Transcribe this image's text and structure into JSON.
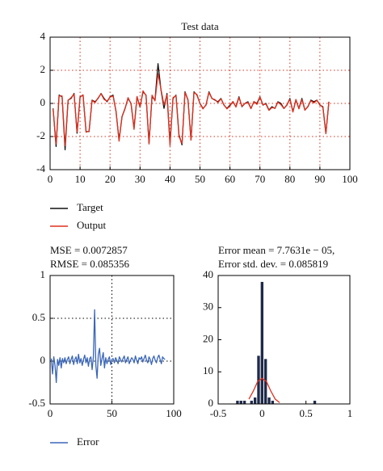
{
  "chart_data": [
    {
      "type": "line",
      "title": "Test data",
      "x": [
        1,
        2,
        3,
        4,
        5,
        6,
        7,
        8,
        9,
        10,
        11,
        12,
        13,
        14,
        15,
        16,
        17,
        18,
        19,
        20,
        21,
        22,
        23,
        24,
        25,
        26,
        27,
        28,
        29,
        30,
        31,
        32,
        33,
        34,
        35,
        36,
        37,
        38,
        39,
        40,
        41,
        42,
        43,
        44,
        45,
        46,
        47,
        48,
        49,
        50,
        51,
        52,
        53,
        54,
        55,
        56,
        57,
        58,
        59,
        60,
        61,
        62,
        63,
        64,
        65,
        66,
        67,
        68,
        69,
        70,
        71,
        72,
        73,
        74,
        75,
        76,
        77,
        78,
        79,
        80,
        81,
        82,
        83,
        84,
        85,
        86,
        87,
        88,
        89,
        90,
        91,
        92,
        93
      ],
      "series": [
        {
          "name": "Target",
          "color": "#111111",
          "values": [
            -0.3,
            -2.6,
            0.5,
            0.4,
            -2.8,
            0.2,
            0.3,
            0.6,
            -1.8,
            0.4,
            0.5,
            -1.7,
            -1.7,
            0.2,
            0.1,
            0.3,
            0.6,
            0.3,
            0.1,
            0.4,
            0.5,
            -0.5,
            -2.2,
            -0.8,
            -0.3,
            0.3,
            0,
            -1.5,
            0.4,
            -0.2,
            0.7,
            0.5,
            -2.4,
            0.4,
            0.2,
            2.4,
            0.8,
            -0.3,
            0.6,
            -2.4,
            0.3,
            0.5,
            -1.9,
            -2.5,
            0.7,
            0.2,
            -2.2,
            0.7,
            0.5,
            0,
            -0.3,
            -0.1,
            0.7,
            0.3,
            0.2,
            0.1,
            0.3,
            -0.1,
            -0.3,
            -0.1,
            0.1,
            -0.2,
            0.4,
            -0.2,
            0,
            0.1,
            -0.3,
            0.1,
            0,
            0.4,
            -0.1,
            0,
            -0.4,
            -0.2,
            -0.3,
            0.1,
            0,
            -0.3,
            -0.1,
            0.3,
            -0.5,
            0.2,
            -0.3,
            0.3,
            -0.4,
            -0.2,
            0.2,
            0.1,
            0.2,
            -0.1,
            -0.2,
            -1.8,
            0.1
          ]
        },
        {
          "name": "Output",
          "color": "#e0301e",
          "values": [
            -0.33,
            -2.45,
            0.45,
            0.45,
            -2.55,
            0.18,
            0.35,
            0.56,
            -1.72,
            0.37,
            0.52,
            -1.74,
            -1.67,
            0.18,
            0.05,
            0.33,
            0.58,
            0.24,
            0.14,
            0.38,
            0.45,
            -0.47,
            -2.28,
            -0.78,
            -0.33,
            0.35,
            -0.02,
            -1.57,
            0.42,
            -0.24,
            0.76,
            0.47,
            -2.45,
            0.5,
            0.15,
            1.8,
            0.85,
            -0.1,
            0.52,
            -2.55,
            0.35,
            0.47,
            -2,
            -2.42,
            0.66,
            0.23,
            -2.22,
            0.65,
            0.54,
            -0.02,
            -0.33,
            -0.08,
            0.66,
            0.29,
            0.23,
            0.05,
            0.28,
            -0.09,
            -0.33,
            -0.16,
            0.12,
            -0.22,
            0.35,
            -0.17,
            -0.01,
            0.06,
            -0.32,
            0.12,
            -0.06,
            0.39,
            -0.07,
            -0.04,
            -0.42,
            -0.25,
            -0.29,
            0.07,
            -0.07,
            -0.31,
            -0.08,
            0.25,
            -0.52,
            0.24,
            -0.33,
            0.24,
            -0.41,
            -0.18,
            0.16,
            0.03,
            0.18,
            -0.07,
            -0.25,
            -1.83,
            0.08
          ]
        }
      ],
      "xlim": [
        0,
        100
      ],
      "xticks": [
        0,
        10,
        20,
        30,
        40,
        50,
        60,
        70,
        80,
        90,
        100
      ],
      "ylim": [
        -4,
        4
      ],
      "yticks": [
        -4,
        -2,
        0,
        2,
        4
      ],
      "grid": true,
      "grid_color": "#d9301e"
    },
    {
      "type": "line",
      "annotations": [
        "MSE = 0.0072857",
        "RMSE = 0.085356"
      ],
      "x": [
        1,
        2,
        3,
        4,
        5,
        6,
        7,
        8,
        9,
        10,
        11,
        12,
        13,
        14,
        15,
        16,
        17,
        18,
        19,
        20,
        21,
        22,
        23,
        24,
        25,
        26,
        27,
        28,
        29,
        30,
        31,
        32,
        33,
        34,
        35,
        36,
        37,
        38,
        39,
        40,
        41,
        42,
        43,
        44,
        45,
        46,
        47,
        48,
        49,
        50,
        51,
        52,
        53,
        54,
        55,
        56,
        57,
        58,
        59,
        60,
        61,
        62,
        63,
        64,
        65,
        66,
        67,
        68,
        69,
        70,
        71,
        72,
        73,
        74,
        75,
        76,
        77,
        78,
        79,
        80,
        81,
        82,
        83,
        84,
        85,
        86,
        87,
        88,
        89,
        90,
        91,
        92,
        93
      ],
      "series": [
        {
          "name": "Error",
          "color": "#3a66b8",
          "values": [
            0.03,
            -0.15,
            0.05,
            -0.05,
            -0.25,
            0.02,
            -0.05,
            0.04,
            -0.08,
            0.03,
            -0.02,
            0.04,
            -0.03,
            0.02,
            0.05,
            -0.03,
            0.02,
            0.06,
            -0.04,
            0.02,
            0.05,
            -0.03,
            0.08,
            -0.02,
            0.03,
            -0.05,
            0.02,
            0.07,
            -0.02,
            0.04,
            -0.06,
            0.03,
            0.05,
            -0.1,
            0.05,
            0.6,
            -0.05,
            -0.2,
            0.08,
            0.15,
            -0.05,
            0.03,
            0.1,
            -0.08,
            0.04,
            -0.03,
            0.02,
            0.05,
            -0.04,
            0.02,
            0.03,
            -0.02,
            0.04,
            0.01,
            -0.03,
            0.05,
            0.02,
            -0.01,
            0.03,
            0.06,
            -0.02,
            0.02,
            0.05,
            -0.03,
            0.01,
            0.04,
            0.02,
            -0.02,
            0.06,
            0.01,
            -0.03,
            0.04,
            0.02,
            0.05,
            -0.01,
            0.03,
            0.07,
            0.01,
            -0.02,
            0.05,
            0.02,
            -0.04,
            0.03,
            0.06,
            0.01,
            -0.02,
            0.04,
            0.07,
            0.02,
            -0.03,
            0.05,
            0.03,
            0.02
          ]
        }
      ],
      "xlim": [
        0,
        100
      ],
      "xticks": [
        0,
        50,
        100
      ],
      "ylim": [
        -0.5,
        1
      ],
      "yticks": [
        -0.5,
        0,
        0.5,
        1
      ],
      "grid": true,
      "grid_color": "#000000"
    },
    {
      "type": "histogram",
      "annotations": [
        "Error mean = 7.7631e − 05,",
        "Error std. dev. = 0.085819"
      ],
      "bins": [
        -0.34,
        -0.3,
        -0.26,
        -0.22,
        -0.18,
        -0.14,
        -0.1,
        -0.06,
        -0.02,
        0.02,
        0.06,
        0.1,
        0.14,
        0.18,
        0.22,
        0.26,
        0.3,
        0.34,
        0.38,
        0.42,
        0.46,
        0.5,
        0.54,
        0.58,
        0.62
      ],
      "values": [
        0,
        1,
        1,
        1,
        0,
        1,
        2,
        15,
        38,
        14,
        2,
        1,
        0,
        0,
        0,
        0,
        0,
        0,
        0,
        0,
        0,
        0,
        0,
        1
      ],
      "color": "#1f2a4a",
      "fit": {
        "x": [
          -0.15,
          -0.1,
          -0.05,
          0,
          0.05,
          0.1,
          0.15,
          0.2
        ],
        "values": [
          1.5,
          4,
          7,
          8,
          7,
          4,
          1.5,
          0.4
        ],
        "color": "#e0301e"
      },
      "xlim": [
        -0.5,
        1
      ],
      "xticks": [
        -0.5,
        0,
        0.5,
        1
      ],
      "ylim": [
        0,
        40
      ],
      "yticks": [
        0,
        10,
        20,
        30,
        40
      ],
      "grid": false
    }
  ]
}
